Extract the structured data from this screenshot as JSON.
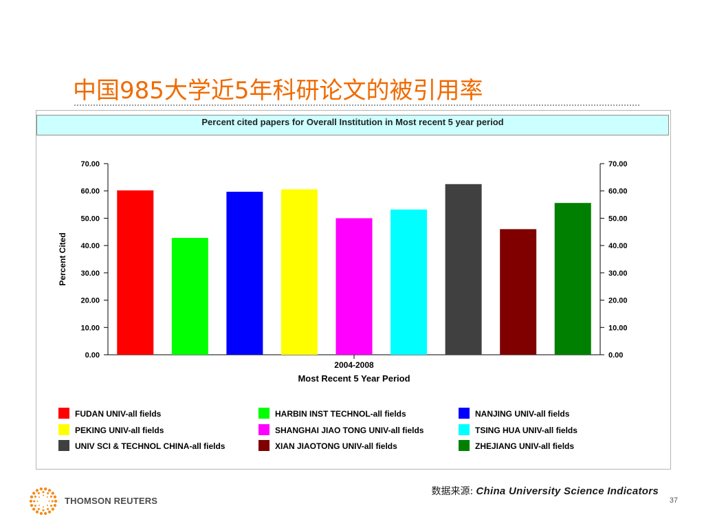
{
  "slide": {
    "title": "中国985大学近5年科研论文的被引用率",
    "source_label": "数据来源:",
    "source_value": "China University Science Indicators",
    "logo_text": "THOMSON REUTERS",
    "page_number": "37"
  },
  "colors": {
    "title": "#f06a00",
    "header_bg": "#ccffff",
    "logo_orange": "#f28c1e"
  },
  "chart_data": {
    "type": "bar",
    "title": "Percent cited papers for Overall Institution in Most recent 5 year period",
    "xlabel": "Most Recent 5 Year Period",
    "x_category": "2004-2008",
    "ylabel": "Percent Cited",
    "ylim": [
      0,
      70
    ],
    "yticks": [
      "0.00",
      "10.00",
      "20.00",
      "30.00",
      "40.00",
      "50.00",
      "60.00",
      "70.00"
    ],
    "right_axis": true,
    "legend_position": "bottom",
    "series": [
      {
        "name": "FUDAN UNIV-all fields",
        "value": 60.2,
        "color": "#ff0000"
      },
      {
        "name": "HARBIN INST TECHNOL-all fields",
        "value": 42.8,
        "color": "#00ff00"
      },
      {
        "name": "NANJING UNIV-all fields",
        "value": 59.7,
        "color": "#0000ff"
      },
      {
        "name": "PEKING UNIV-all fields",
        "value": 60.6,
        "color": "#ffff00"
      },
      {
        "name": "SHANGHAI JIAO TONG UNIV-all fields",
        "value": 50.0,
        "color": "#ff00ff"
      },
      {
        "name": "TSING HUA UNIV-all fields",
        "value": 53.2,
        "color": "#00ffff"
      },
      {
        "name": "UNIV SCI & TECHNOL CHINA-all fields",
        "value": 62.5,
        "color": "#404040"
      },
      {
        "name": "XIAN JIAOTONG UNIV-all fields",
        "value": 46.0,
        "color": "#800000"
      },
      {
        "name": "ZHEJIANG UNIV-all fields",
        "value": 55.6,
        "color": "#008000"
      }
    ],
    "legend_order": [
      0,
      3,
      6,
      1,
      4,
      7,
      2,
      5,
      8
    ]
  }
}
